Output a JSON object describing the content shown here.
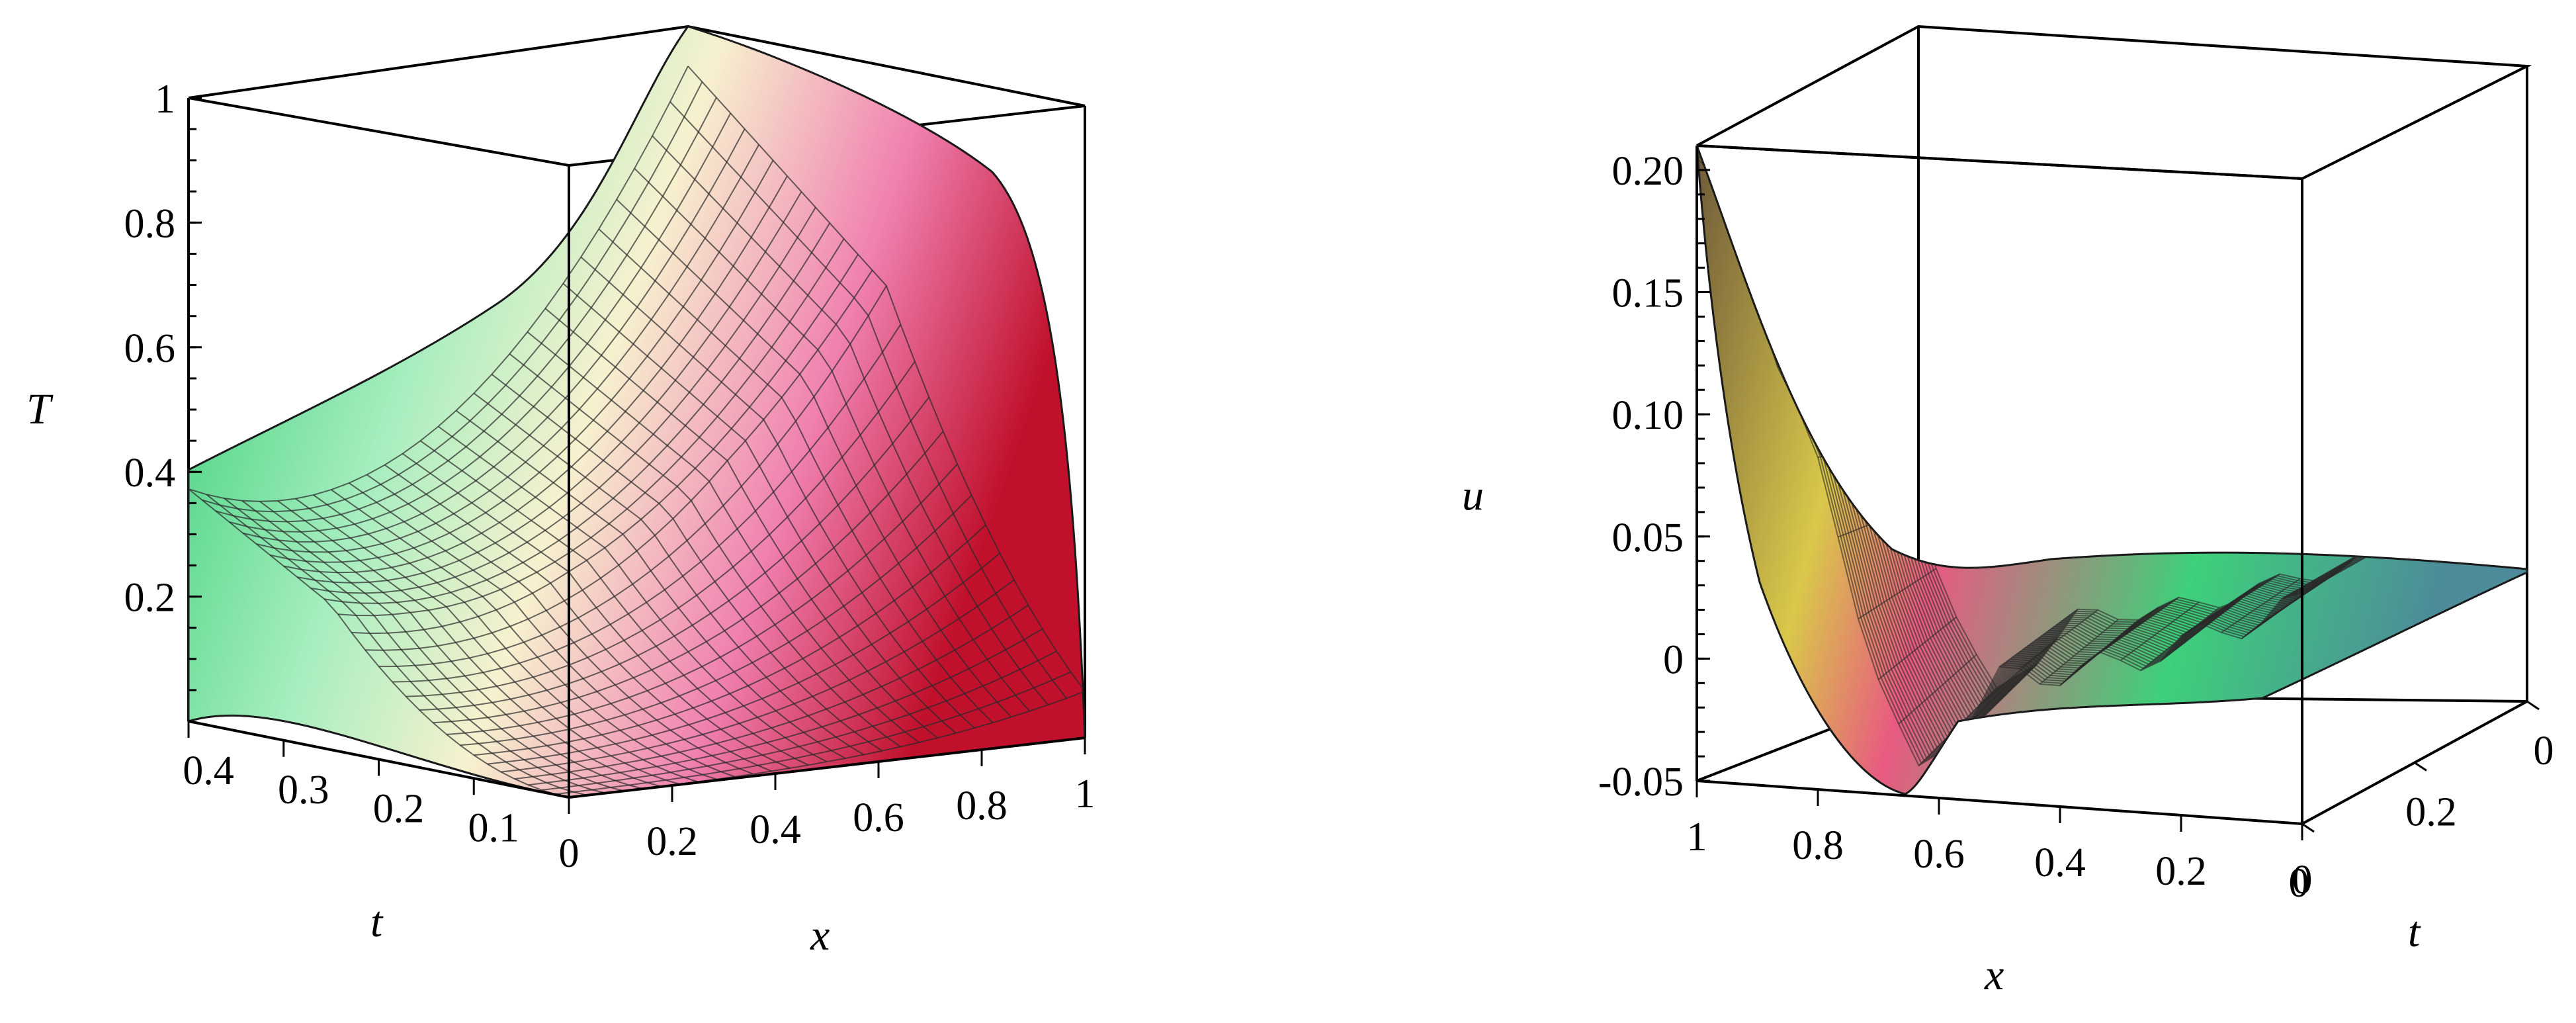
{
  "chart_data": [
    {
      "type": "surface3d",
      "z_label": "T",
      "x_label": "x",
      "t_label": "t",
      "z_ticks": [
        "1",
        "0.8",
        "0.6",
        "0.4",
        "0.2"
      ],
      "z_tick_values": [
        1,
        0.8,
        0.6,
        0.4,
        0.2
      ],
      "x_ticks": [
        "0",
        "0.2",
        "0.4",
        "0.6",
        "0.8",
        "1"
      ],
      "x_tick_values": [
        0,
        0.2,
        0.4,
        0.6,
        0.8,
        1
      ],
      "t_ticks": [
        "0.4",
        "0.3",
        "0.2",
        "0.1"
      ],
      "t_tick_values": [
        0.4,
        0.3,
        0.2,
        0.1
      ],
      "xlim": [
        0,
        1
      ],
      "tlim": [
        0,
        0.4
      ],
      "zlim": [
        0,
        1
      ],
      "corner_values": {
        "x0_t0": 0.0,
        "x0_t04": 0.39,
        "x1_t0": 0.0,
        "x1_t04": 1.0
      },
      "colors": {
        "low_t": "#2fcf6f",
        "mid": "#f4f0c0",
        "high": "#e05a86",
        "edge": "#c01030"
      }
    },
    {
      "type": "surface3d",
      "z_label": "u",
      "x_label": "x",
      "t_label": "t",
      "z_ticks": [
        "0.20",
        "0.15",
        "0.10",
        "0.05",
        "0",
        "-0.05"
      ],
      "z_tick_values": [
        0.2,
        0.15,
        0.1,
        0.05,
        0,
        -0.05
      ],
      "x_ticks": [
        "1",
        "0.8",
        "0.6",
        "0.4",
        "0.2",
        "0"
      ],
      "x_tick_values": [
        1,
        0.8,
        0.6,
        0.4,
        0.2,
        0
      ],
      "t_ticks": [
        "0",
        "0.2",
        "0"
      ],
      "t_tick_values": [
        0,
        0.2,
        0
      ],
      "xlim": [
        0,
        1
      ],
      "zlim": [
        -0.05,
        0.21
      ],
      "profile_front": {
        "x": [
          1.0,
          0.9,
          0.8,
          0.7,
          0.64,
          0.6,
          0.5,
          0.4,
          0.3,
          0.2,
          0.1,
          0.0
        ],
        "u": [
          0.205,
          0.15,
          0.08,
          0.0,
          -0.045,
          -0.03,
          0.0,
          0.005,
          0.01,
          0.02,
          0.03,
          0.04
        ]
      },
      "colors": {
        "peak": "#7a5a3c",
        "trough": "#e8e840",
        "ridge": "#e85a86",
        "flat": "#2fcf6f"
      }
    }
  ]
}
